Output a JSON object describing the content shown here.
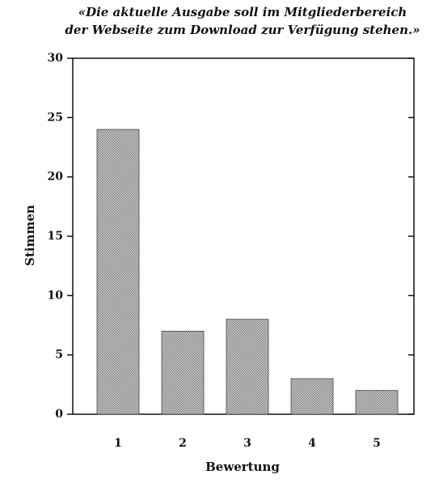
{
  "chart_data": {
    "type": "bar",
    "title": [
      "«Die aktuelle Ausgabe soll im Mitgliederbereich",
      "der Webseite zum Download zur Verfügung stehen.»"
    ],
    "xlabel": "Bewertung",
    "ylabel": "Stimmen",
    "categories": [
      "1",
      "2",
      "3",
      "4",
      "5"
    ],
    "values": [
      24,
      7,
      8,
      3,
      2
    ],
    "color": "#7a7a7a",
    "ylim": [
      0,
      30
    ],
    "yticks": [
      0,
      5,
      10,
      15,
      20,
      25,
      30
    ]
  }
}
